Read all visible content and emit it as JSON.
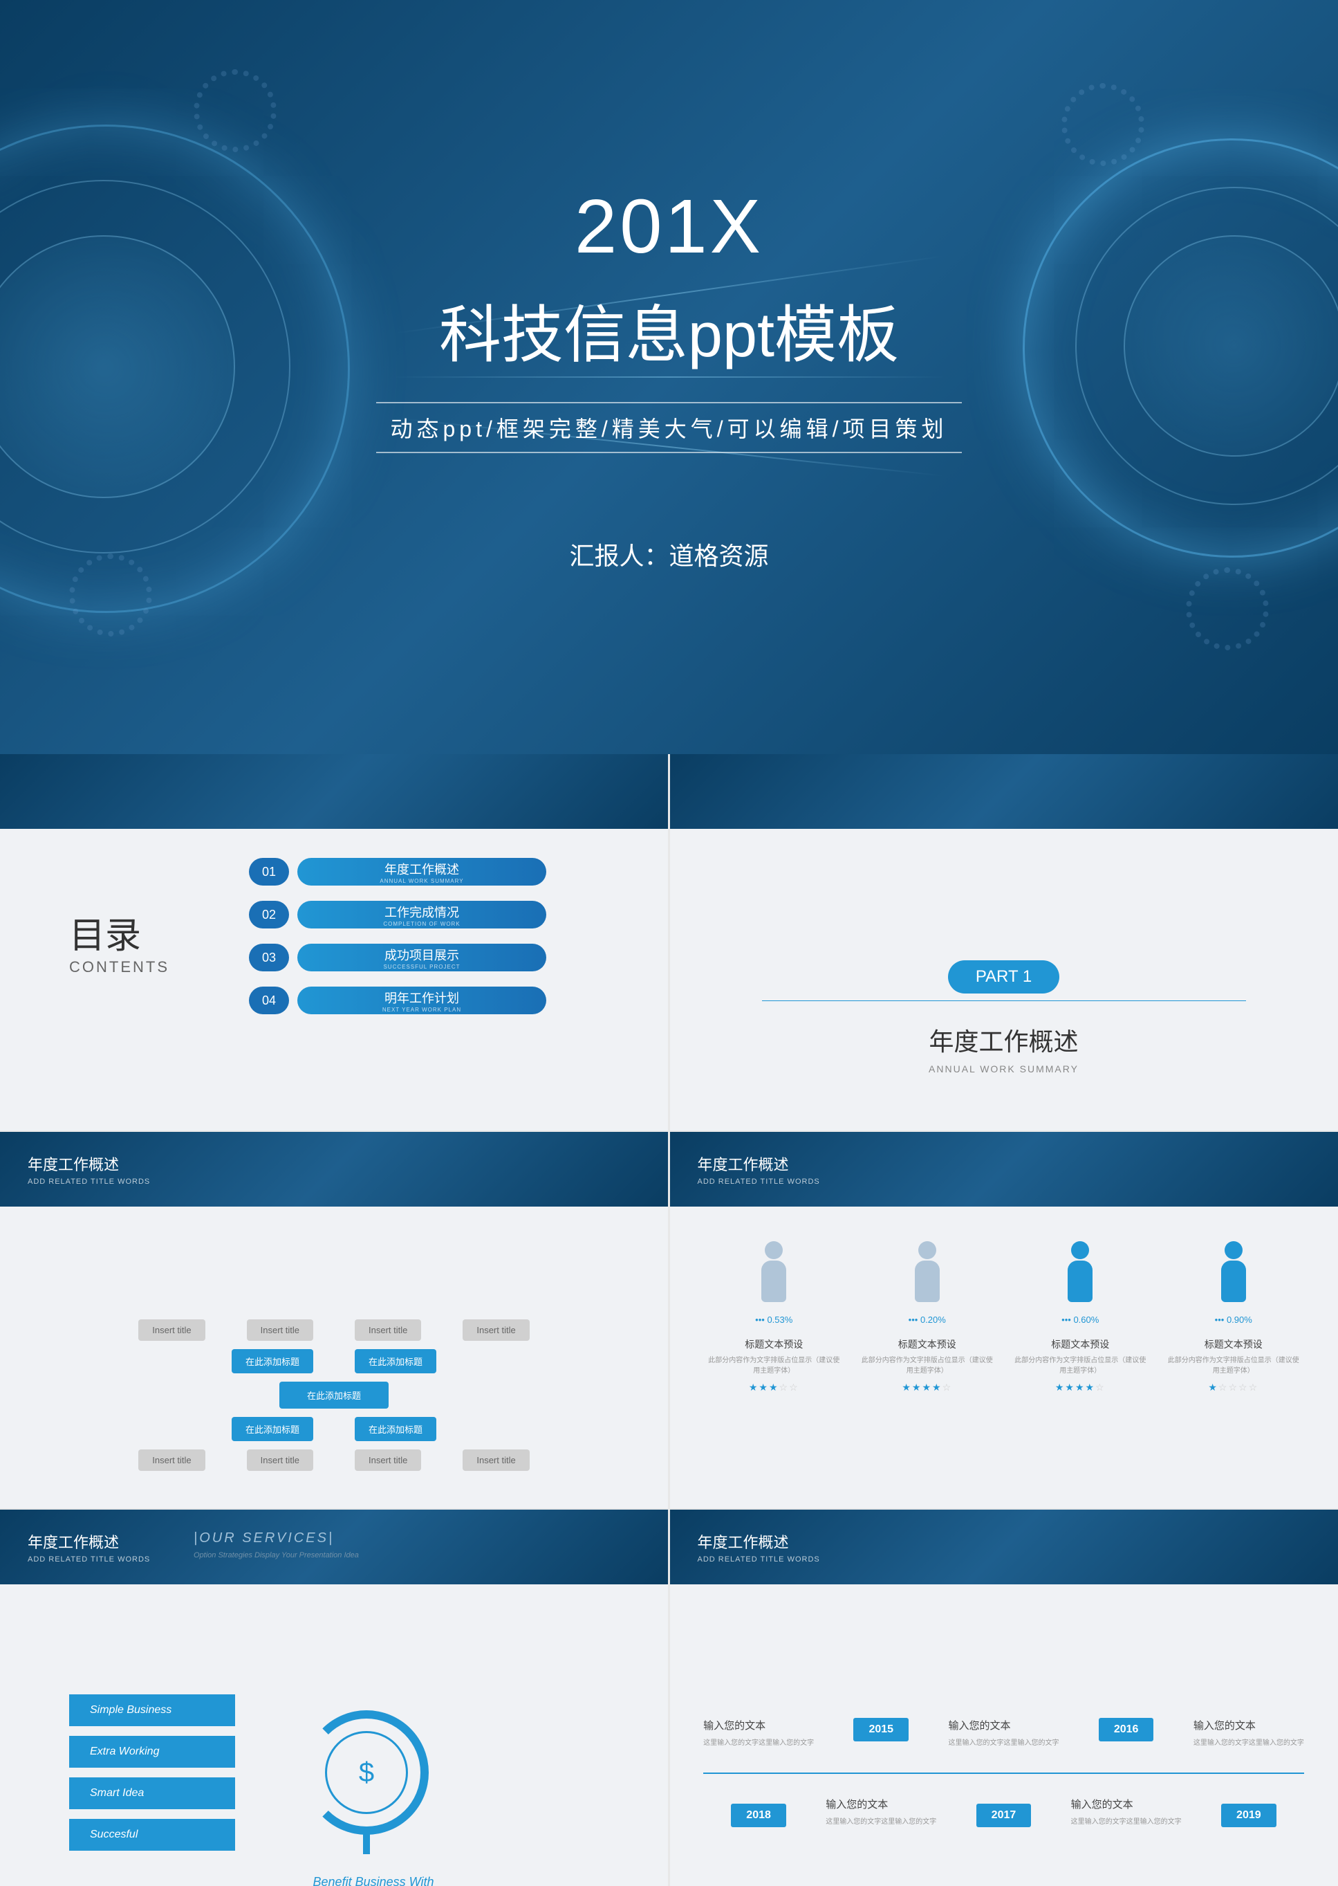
{
  "cover": {
    "year": "201X",
    "title": "科技信息ppt模板",
    "subtitle": "动态ppt/框架完整/精美大气/可以编辑/项目策划",
    "reporter_label": "汇报人：",
    "reporter_name": "道格资源",
    "bg_gradient": [
      "#0a3d62",
      "#1e5f8e",
      "#0a3d62"
    ],
    "ring_color": "#64c8ff"
  },
  "toc": {
    "header_cn": "目录",
    "header_en": "CONTENTS",
    "items": [
      {
        "num": "01",
        "cn": "年度工作概述",
        "en": "ANNUAL WORK SUMMARY"
      },
      {
        "num": "02",
        "cn": "工作完成情况",
        "en": "COMPLETION OF WORK"
      },
      {
        "num": "03",
        "cn": "成功项目展示",
        "en": "SUCCESSFUL PROJECT"
      },
      {
        "num": "04",
        "cn": "明年工作计划",
        "en": "NEXT YEAR WORK PLAN"
      }
    ],
    "accent": "#2196d4"
  },
  "part": {
    "badge": "PART 1",
    "title": "年度工作概述",
    "subtitle": "ANNUAL WORK SUMMARY"
  },
  "slide_header": {
    "title": "年度工作概述",
    "subtitle": "ADD RELATED TITLE WORDS"
  },
  "mindmap": {
    "small": "Insert title",
    "mid": "在此添加标题",
    "center": "在此添加标题"
  },
  "people": {
    "cols": [
      {
        "pct": "0.53%",
        "stars": 3,
        "fill": "#b0c5d8"
      },
      {
        "pct": "0.20%",
        "stars": 4,
        "fill": "#b0c5d8"
      },
      {
        "pct": "0.60%",
        "stars": 4,
        "fill": "#2196d4"
      },
      {
        "pct": "0.90%",
        "stars": 1,
        "fill": "#2196d4"
      }
    ],
    "col_title": "标题文本预设",
    "col_desc": "此部分内容作为文字排版占位显示（建议使用主题字体）"
  },
  "services": {
    "header_extra": "|OUR SERVICES|",
    "header_sub": "Option Strategies Display Your Presentation Idea",
    "items": [
      "Simple Business",
      "Extra Working",
      "Smart Idea",
      "Succesful"
    ],
    "caption": "Benefit Business With Us!",
    "icon": "$"
  },
  "timeline": {
    "items": [
      {
        "year": "2018",
        "pos": "top"
      },
      {
        "year": "2015",
        "pos": "bot"
      },
      {
        "year": "2017",
        "pos": "top"
      },
      {
        "year": "2016",
        "pos": "bot"
      },
      {
        "year": "2019",
        "pos": "top"
      }
    ],
    "item_title": "输入您的文本",
    "item_desc": "这里输入您的文字这里输入您的文字"
  },
  "colors": {
    "primary": "#2196d4",
    "dark": "#1a6fb5",
    "bg": "#f0f2f5"
  }
}
